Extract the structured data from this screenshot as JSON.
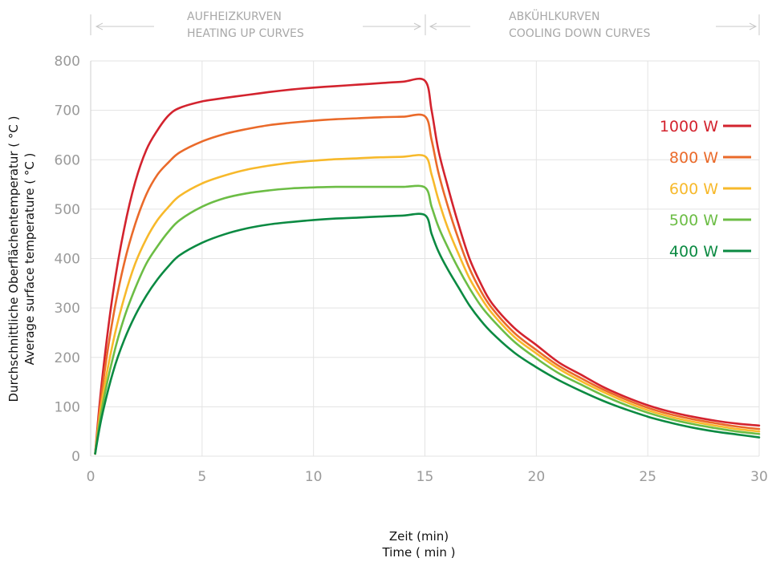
{
  "chart_data": {
    "type": "line",
    "sections": [
      {
        "line1": "AUFHEIZKURVEN",
        "line2": "HEATING UP CURVES"
      },
      {
        "line1": "ABKÜHLKURVEN",
        "line2": "COOLING DOWN CURVES"
      }
    ],
    "xlabel_de": "Zeit (min)",
    "xlabel_en": "Time ( min )",
    "ylabel_de": "Durchschnittliche Oberflächentemperatur ( °C )",
    "ylabel_en": "Average surface temperature ( °C )",
    "xlim": [
      0,
      30
    ],
    "ylim": [
      0,
      800
    ],
    "x_ticks": [
      "0",
      "5",
      "10",
      "15",
      "20",
      "25",
      "30"
    ],
    "y_ticks": [
      "0",
      "100",
      "200",
      "300",
      "400",
      "500",
      "600",
      "700",
      "800"
    ],
    "grid": true,
    "legend_position": "right",
    "series": [
      {
        "name": "1000 W",
        "color": "#d3232e",
        "points": [
          [
            0.2,
            5
          ],
          [
            0.5,
            150
          ],
          [
            1,
            330
          ],
          [
            1.5,
            460
          ],
          [
            2,
            555
          ],
          [
            2.5,
            620
          ],
          [
            3,
            660
          ],
          [
            3.5,
            690
          ],
          [
            4,
            705
          ],
          [
            5,
            718
          ],
          [
            6,
            725
          ],
          [
            7,
            731
          ],
          [
            8,
            737
          ],
          [
            9,
            742
          ],
          [
            10,
            746
          ],
          [
            11,
            749
          ],
          [
            12,
            752
          ],
          [
            13,
            755
          ],
          [
            14,
            758
          ],
          [
            15,
            760
          ],
          [
            15.3,
            700
          ],
          [
            15.6,
            620
          ],
          [
            16,
            550
          ],
          [
            16.5,
            470
          ],
          [
            17,
            400
          ],
          [
            17.5,
            350
          ],
          [
            18,
            310
          ],
          [
            19,
            260
          ],
          [
            20,
            225
          ],
          [
            21,
            190
          ],
          [
            22,
            165
          ],
          [
            23,
            140
          ],
          [
            24,
            120
          ],
          [
            25,
            103
          ],
          [
            26,
            90
          ],
          [
            27,
            80
          ],
          [
            28,
            72
          ],
          [
            29,
            66
          ],
          [
            30,
            62
          ]
        ]
      },
      {
        "name": "800 W",
        "color": "#ea6a2a",
        "points": [
          [
            0.2,
            5
          ],
          [
            0.5,
            130
          ],
          [
            1,
            280
          ],
          [
            1.5,
            390
          ],
          [
            2,
            470
          ],
          [
            2.5,
            530
          ],
          [
            3,
            570
          ],
          [
            3.5,
            595
          ],
          [
            4,
            615
          ],
          [
            5,
            637
          ],
          [
            6,
            652
          ],
          [
            7,
            662
          ],
          [
            8,
            670
          ],
          [
            9,
            675
          ],
          [
            10,
            679
          ],
          [
            11,
            682
          ],
          [
            12,
            684
          ],
          [
            13,
            686
          ],
          [
            14,
            687
          ],
          [
            15,
            688
          ],
          [
            15.3,
            640
          ],
          [
            15.6,
            575
          ],
          [
            16,
            510
          ],
          [
            16.5,
            440
          ],
          [
            17,
            380
          ],
          [
            17.5,
            335
          ],
          [
            18,
            300
          ],
          [
            19,
            250
          ],
          [
            20,
            215
          ],
          [
            21,
            183
          ],
          [
            22,
            158
          ],
          [
            23,
            135
          ],
          [
            24,
            115
          ],
          [
            25,
            98
          ],
          [
            26,
            85
          ],
          [
            27,
            75
          ],
          [
            28,
            67
          ],
          [
            29,
            60
          ],
          [
            30,
            55
          ]
        ]
      },
      {
        "name": "600 W",
        "color": "#f7b92b",
        "points": [
          [
            0.2,
            5
          ],
          [
            0.5,
            110
          ],
          [
            1,
            230
          ],
          [
            1.5,
            320
          ],
          [
            2,
            390
          ],
          [
            2.5,
            440
          ],
          [
            3,
            478
          ],
          [
            3.5,
            505
          ],
          [
            4,
            527
          ],
          [
            5,
            552
          ],
          [
            6,
            568
          ],
          [
            7,
            580
          ],
          [
            8,
            588
          ],
          [
            9,
            594
          ],
          [
            10,
            598
          ],
          [
            11,
            601
          ],
          [
            12,
            603
          ],
          [
            13,
            605
          ],
          [
            14,
            606
          ],
          [
            15,
            607
          ],
          [
            15.3,
            570
          ],
          [
            15.6,
            520
          ],
          [
            16,
            465
          ],
          [
            16.5,
            410
          ],
          [
            17,
            360
          ],
          [
            17.5,
            322
          ],
          [
            18,
            290
          ],
          [
            19,
            242
          ],
          [
            20,
            208
          ],
          [
            21,
            177
          ],
          [
            22,
            152
          ],
          [
            23,
            130
          ],
          [
            24,
            110
          ],
          [
            25,
            93
          ],
          [
            26,
            80
          ],
          [
            27,
            70
          ],
          [
            28,
            62
          ],
          [
            29,
            55
          ],
          [
            30,
            50
          ]
        ]
      },
      {
        "name": "500 W",
        "color": "#6cbd45",
        "points": [
          [
            0.2,
            5
          ],
          [
            0.5,
            95
          ],
          [
            1,
            200
          ],
          [
            1.5,
            280
          ],
          [
            2,
            340
          ],
          [
            2.5,
            390
          ],
          [
            3,
            425
          ],
          [
            3.5,
            455
          ],
          [
            4,
            478
          ],
          [
            5,
            505
          ],
          [
            6,
            522
          ],
          [
            7,
            532
          ],
          [
            8,
            538
          ],
          [
            9,
            542
          ],
          [
            10,
            544
          ],
          [
            11,
            545
          ],
          [
            12,
            545
          ],
          [
            13,
            545
          ],
          [
            14,
            545
          ],
          [
            15,
            544
          ],
          [
            15.3,
            505
          ],
          [
            15.6,
            465
          ],
          [
            16,
            425
          ],
          [
            16.5,
            380
          ],
          [
            17,
            340
          ],
          [
            17.5,
            305
          ],
          [
            18,
            278
          ],
          [
            19,
            232
          ],
          [
            20,
            198
          ],
          [
            21,
            168
          ],
          [
            22,
            145
          ],
          [
            23,
            123
          ],
          [
            24,
            104
          ],
          [
            25,
            88
          ],
          [
            26,
            75
          ],
          [
            27,
            65
          ],
          [
            28,
            57
          ],
          [
            29,
            50
          ],
          [
            30,
            45
          ]
        ]
      },
      {
        "name": "400 W",
        "color": "#0b8a42",
        "points": [
          [
            0.2,
            5
          ],
          [
            0.5,
            80
          ],
          [
            1,
            170
          ],
          [
            1.5,
            235
          ],
          [
            2,
            285
          ],
          [
            2.5,
            325
          ],
          [
            3,
            358
          ],
          [
            3.5,
            385
          ],
          [
            4,
            407
          ],
          [
            5,
            432
          ],
          [
            6,
            449
          ],
          [
            7,
            461
          ],
          [
            8,
            469
          ],
          [
            9,
            474
          ],
          [
            10,
            478
          ],
          [
            11,
            481
          ],
          [
            12,
            483
          ],
          [
            13,
            485
          ],
          [
            14,
            487
          ],
          [
            15,
            488
          ],
          [
            15.3,
            450
          ],
          [
            15.6,
            415
          ],
          [
            16,
            380
          ],
          [
            16.5,
            342
          ],
          [
            17,
            305
          ],
          [
            17.5,
            275
          ],
          [
            18,
            250
          ],
          [
            19,
            210
          ],
          [
            20,
            180
          ],
          [
            21,
            154
          ],
          [
            22,
            132
          ],
          [
            23,
            112
          ],
          [
            24,
            95
          ],
          [
            25,
            80
          ],
          [
            26,
            68
          ],
          [
            27,
            58
          ],
          [
            28,
            50
          ],
          [
            29,
            44
          ],
          [
            30,
            38
          ]
        ]
      }
    ]
  }
}
